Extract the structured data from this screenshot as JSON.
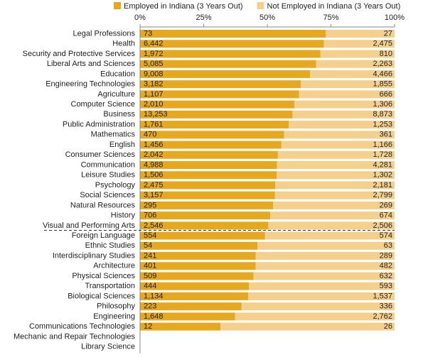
{
  "chart_data": {
    "type": "stacked_percent_bar",
    "categories": [
      "Legal Professions",
      "Health",
      "Security and Protective Services",
      "Liberal Arts and Sciences",
      "Education",
      "Engineering Technologies",
      "Agriculture",
      "Computer Science",
      "Business",
      "Public Administration",
      "Mathematics",
      "English",
      "Consumer Sciences",
      "Communication",
      "Leisure Studies",
      "Psychology",
      "Social Sciences",
      "Natural Resources",
      "History",
      "Visual and Performing Arts",
      "Foreign Language",
      "Ethnic Studies",
      "Interdisciplinary Studies",
      "Architecture",
      "Physical Sciences",
      "Transportation",
      "Biological Sciences",
      "Philosophy",
      "Engineering",
      "Communications Technologies",
      "Mechanic and Repair Technologies",
      "Library Science"
    ],
    "series": [
      {
        "name": "Employed in Indiana (3 Years Out)",
        "color": "#e5a81e",
        "values": [
          73,
          6442,
          1972,
          5085,
          9008,
          3182,
          1107,
          2010,
          13253,
          1761,
          470,
          1456,
          2042,
          4988,
          1506,
          2475,
          3157,
          295,
          706,
          2546,
          554,
          54,
          241,
          401,
          509,
          444,
          1134,
          223,
          1648,
          12,
          null,
          null
        ],
        "value_labels": [
          "73",
          "6,442",
          "1,972",
          "5,085",
          "9,008",
          "3,182",
          "1,107",
          "2,010",
          "13,253",
          "1,761",
          "470",
          "1,456",
          "2,042",
          "4,988",
          "1,506",
          "2,475",
          "3,157",
          "295",
          "706",
          "2,546",
          "554",
          "54",
          "241",
          "401",
          "509",
          "444",
          "1,134",
          "223",
          "1,648",
          "12",
          null,
          null
        ]
      },
      {
        "name": "Not Employed in Indiana (3 Years Out)",
        "color": "#f5d08c",
        "values": [
          27,
          2475,
          810,
          2263,
          4466,
          1855,
          666,
          1306,
          8873,
          1253,
          361,
          1166,
          1728,
          4281,
          1302,
          2181,
          2799,
          269,
          674,
          2506,
          574,
          63,
          289,
          482,
          632,
          593,
          1537,
          336,
          2762,
          26,
          null,
          null
        ],
        "value_labels": [
          "27",
          "2,475",
          "810",
          "2,263",
          "4,466",
          "1,855",
          "666",
          "1,306",
          "8,873",
          "1,253",
          "361",
          "1,166",
          "1,728",
          "4,281",
          "1,302",
          "2,181",
          "2,799",
          "269",
          "674",
          "2,506",
          "574",
          "63",
          "289",
          "482",
          "632",
          "593",
          "1,537",
          "336",
          "2,762",
          "26",
          null,
          null
        ]
      }
    ],
    "xlim": [
      0,
      100
    ],
    "xticks": [
      {
        "value": 0,
        "label": "0%"
      },
      {
        "value": 25,
        "label": "25%"
      },
      {
        "value": 50,
        "label": "50%"
      },
      {
        "value": 75,
        "label": "75%"
      },
      {
        "value": 100,
        "label": "100%"
      }
    ],
    "legend": "top"
  }
}
